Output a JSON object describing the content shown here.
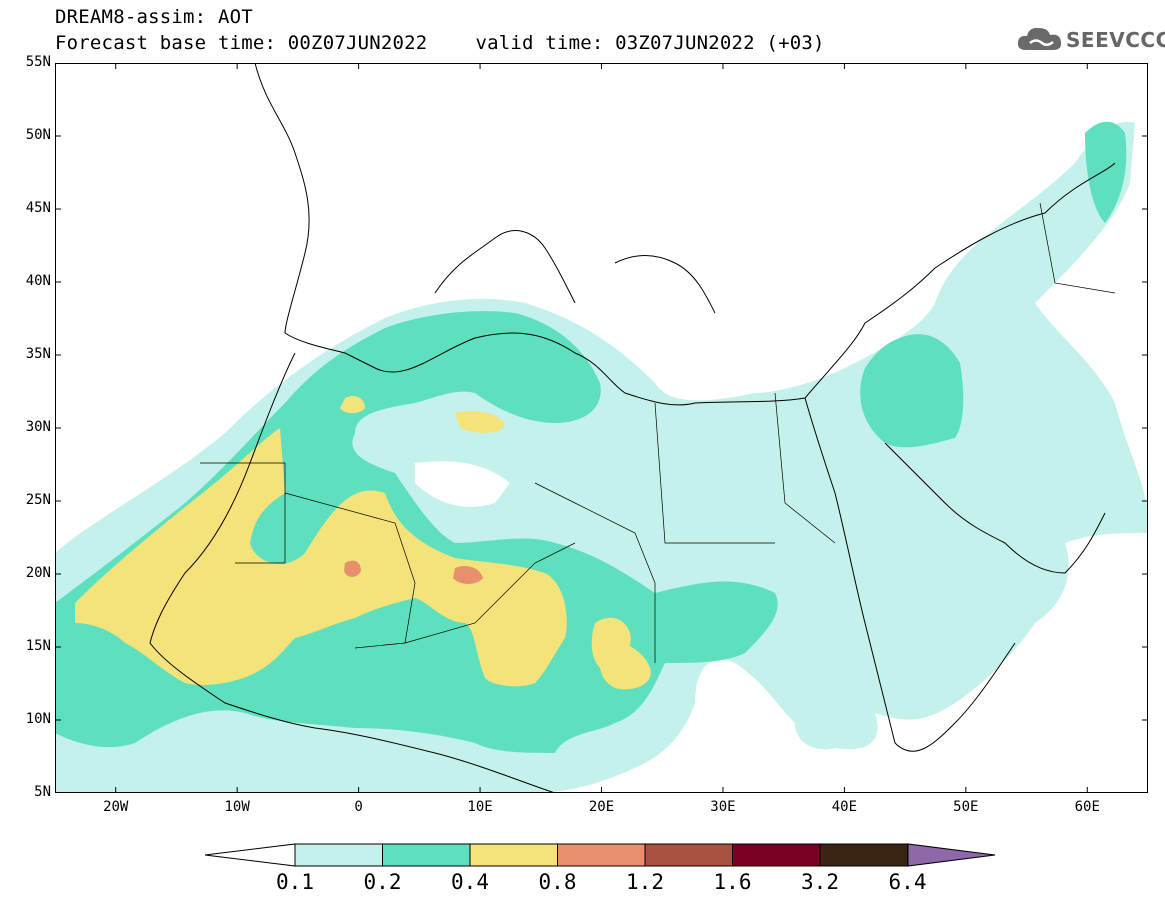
{
  "title": {
    "line1": "DREAM8-assim: AOT",
    "base_time": "Forecast base time: 00Z07JUN2022",
    "valid_time": "valid time: 03Z07JUN2022 (+03)"
  },
  "logo": {
    "text": "SEEVCCC",
    "icon": "cloud-icon"
  },
  "axes": {
    "lon_min": -25,
    "lon_max": 65,
    "lat_min": 5,
    "lat_max": 55,
    "lat_labels": [
      "55N",
      "50N",
      "45N",
      "40N",
      "35N",
      "30N",
      "25N",
      "20N",
      "15N",
      "10N",
      "5N"
    ],
    "lon_labels": [
      "20W",
      "10W",
      "0",
      "10E",
      "20E",
      "30E",
      "40E",
      "50E",
      "60E"
    ]
  },
  "colorbar": {
    "levels": [
      "0.1",
      "0.2",
      "0.4",
      "0.8",
      "1.2",
      "1.6",
      "3.2",
      "6.4"
    ],
    "colors": [
      "#c4f1ec",
      "#5ee0bf",
      "#f4e27b",
      "#e88f6e",
      "#aa5040",
      "#7a0022",
      "#3b2414",
      "#8e68a8"
    ]
  }
}
